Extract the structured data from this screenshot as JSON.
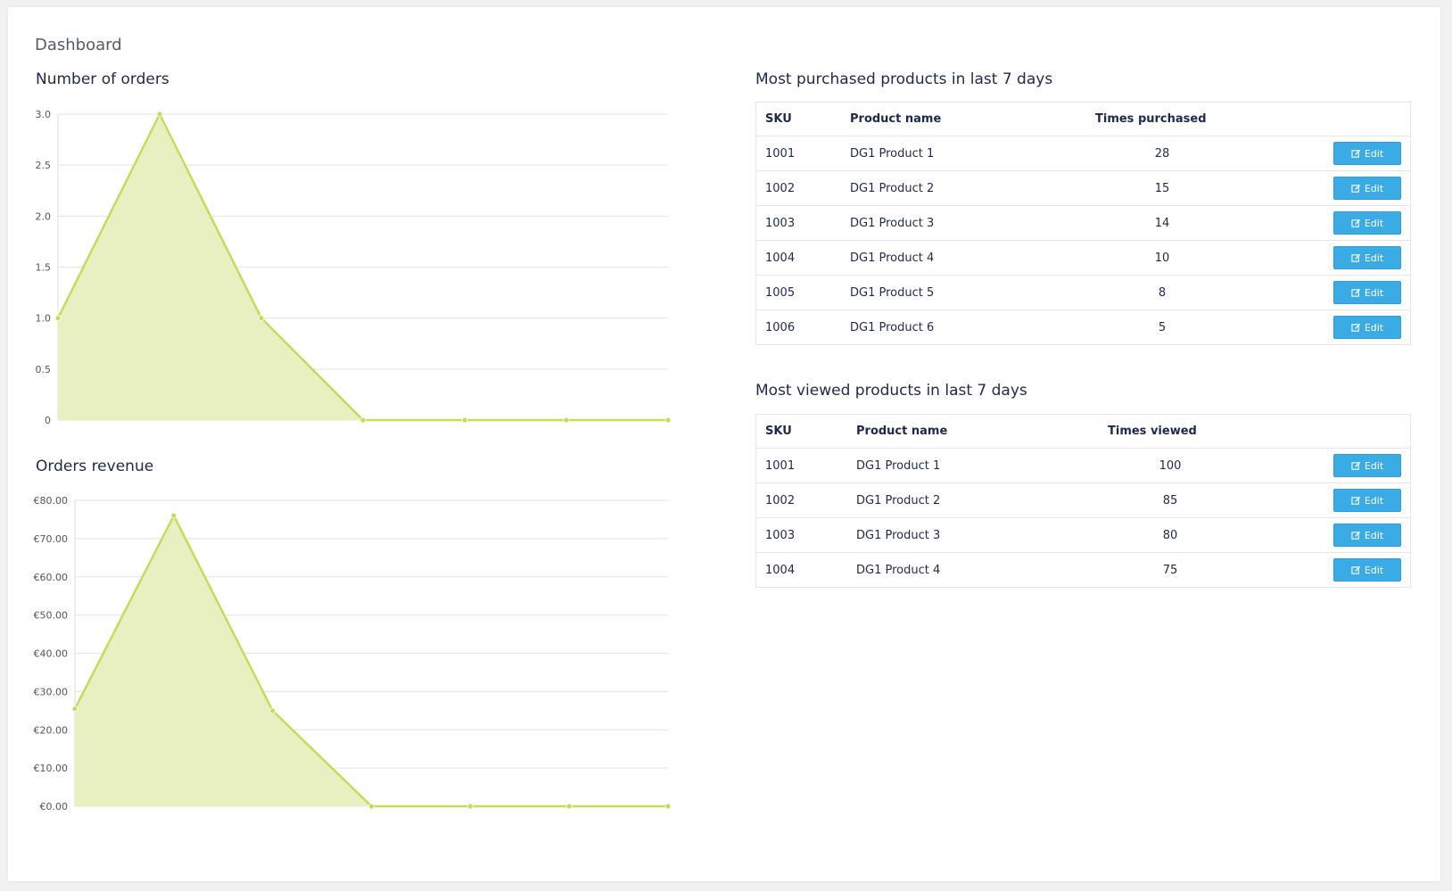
{
  "page": {
    "title": "Dashboard"
  },
  "orders_chart": {
    "title": "Number of orders"
  },
  "revenue_chart": {
    "title": "Orders revenue"
  },
  "chart_data": [
    {
      "type": "area",
      "title": "Number of orders",
      "x": [
        1,
        2,
        3,
        4,
        5,
        6,
        7
      ],
      "values": [
        1,
        3,
        1,
        0,
        0,
        0,
        0
      ],
      "ylim": [
        0,
        3
      ],
      "yticks": [
        "0",
        "0.5",
        "1.0",
        "1.5",
        "2.0",
        "2.5",
        "3.0"
      ],
      "ytick_values": [
        0,
        0.5,
        1,
        1.5,
        2,
        2.5,
        3
      ],
      "grid": true,
      "color": "#c6db5c",
      "fill": "#e8f0c2"
    },
    {
      "type": "area",
      "title": "Orders revenue",
      "x": [
        1,
        2,
        3,
        4,
        5,
        6,
        7
      ],
      "values": [
        25.5,
        76,
        25,
        0,
        0,
        0,
        0
      ],
      "ylim": [
        0,
        80
      ],
      "yticks": [
        "€0.00",
        "€10.00",
        "€20.00",
        "€30.00",
        "€40.00",
        "€50.00",
        "€60.00",
        "€70.00",
        "€80.00"
      ],
      "ytick_values": [
        0,
        10,
        20,
        30,
        40,
        50,
        60,
        70,
        80
      ],
      "grid": true,
      "color": "#c6db5c",
      "fill": "#e8f0c2"
    }
  ],
  "purchased": {
    "title": "Most purchased products in last 7 days",
    "headers": {
      "sku": "SKU",
      "name": "Product name",
      "count": "Times purchased"
    },
    "rows": [
      {
        "sku": "1001",
        "name": "DG1 Product 1",
        "count": "28",
        "action": "Edit"
      },
      {
        "sku": "1002",
        "name": "DG1 Product 2",
        "count": "15",
        "action": "Edit"
      },
      {
        "sku": "1003",
        "name": "DG1 Product 3",
        "count": "14",
        "action": "Edit"
      },
      {
        "sku": "1004",
        "name": "DG1 Product 4",
        "count": "10",
        "action": "Edit"
      },
      {
        "sku": "1005",
        "name": "DG1 Product 5",
        "count": "8",
        "action": "Edit"
      },
      {
        "sku": "1006",
        "name": "DG1 Product 6",
        "count": "5",
        "action": "Edit"
      }
    ]
  },
  "viewed": {
    "title": "Most viewed products in last 7 days",
    "headers": {
      "sku": "SKU",
      "name": "Product name",
      "count": "Times viewed"
    },
    "rows": [
      {
        "sku": "1001",
        "name": "DG1 Product 1",
        "count": "100",
        "action": "Edit"
      },
      {
        "sku": "1002",
        "name": "DG1 Product 2",
        "count": "85",
        "action": "Edit"
      },
      {
        "sku": "1003",
        "name": "DG1 Product 3",
        "count": "80",
        "action": "Edit"
      },
      {
        "sku": "1004",
        "name": "DG1 Product 4",
        "count": "75",
        "action": "Edit"
      }
    ]
  }
}
